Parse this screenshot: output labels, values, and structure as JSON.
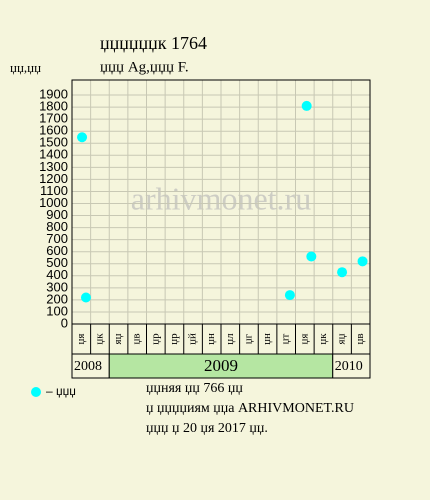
{
  "chart_data": {
    "type": "scatter",
    "title": "џџџџџџк 1764",
    "subtitle": "џџџ Ag,џџџ F.",
    "y_label": "џџ,џџ",
    "watermark": "arhivmonet.ru",
    "categories": [
      "џя",
      "џк",
      "яџ",
      "џв",
      "џр",
      "џр",
      "џй",
      "џн",
      "џл",
      "џг",
      "џн",
      "џт",
      "џя",
      "џк",
      "яџ",
      "џв"
    ],
    "years": [
      {
        "label": "2008",
        "columns": 2,
        "highlight": false
      },
      {
        "label": "2009",
        "columns": 12,
        "highlight": true
      },
      {
        "label": "2010",
        "columns": 2,
        "highlight": false
      }
    ],
    "xlim": [
      0,
      16
    ],
    "ylim": [
      0,
      2025
    ],
    "yticks": [
      0,
      100,
      200,
      300,
      400,
      500,
      600,
      700,
      800,
      900,
      1000,
      1100,
      1200,
      1300,
      1400,
      1500,
      1600,
      1700,
      1800,
      1900
    ],
    "series": [
      {
        "name": "– џџџ",
        "color": "#00ffff",
        "x": [
          0.54,
          0.75,
          11.7,
          12.6,
          12.85,
          14.5,
          15.6
        ],
        "values": [
          1550,
          220,
          240,
          1810,
          560,
          430,
          520
        ]
      }
    ],
    "grid": true,
    "notes": [
      "џџняя џџ 766 џџ",
      "џ џџџџиям џџа ARHIVMONET.RU",
      "џџџ џ 20 џя 2017 џџ."
    ]
  }
}
